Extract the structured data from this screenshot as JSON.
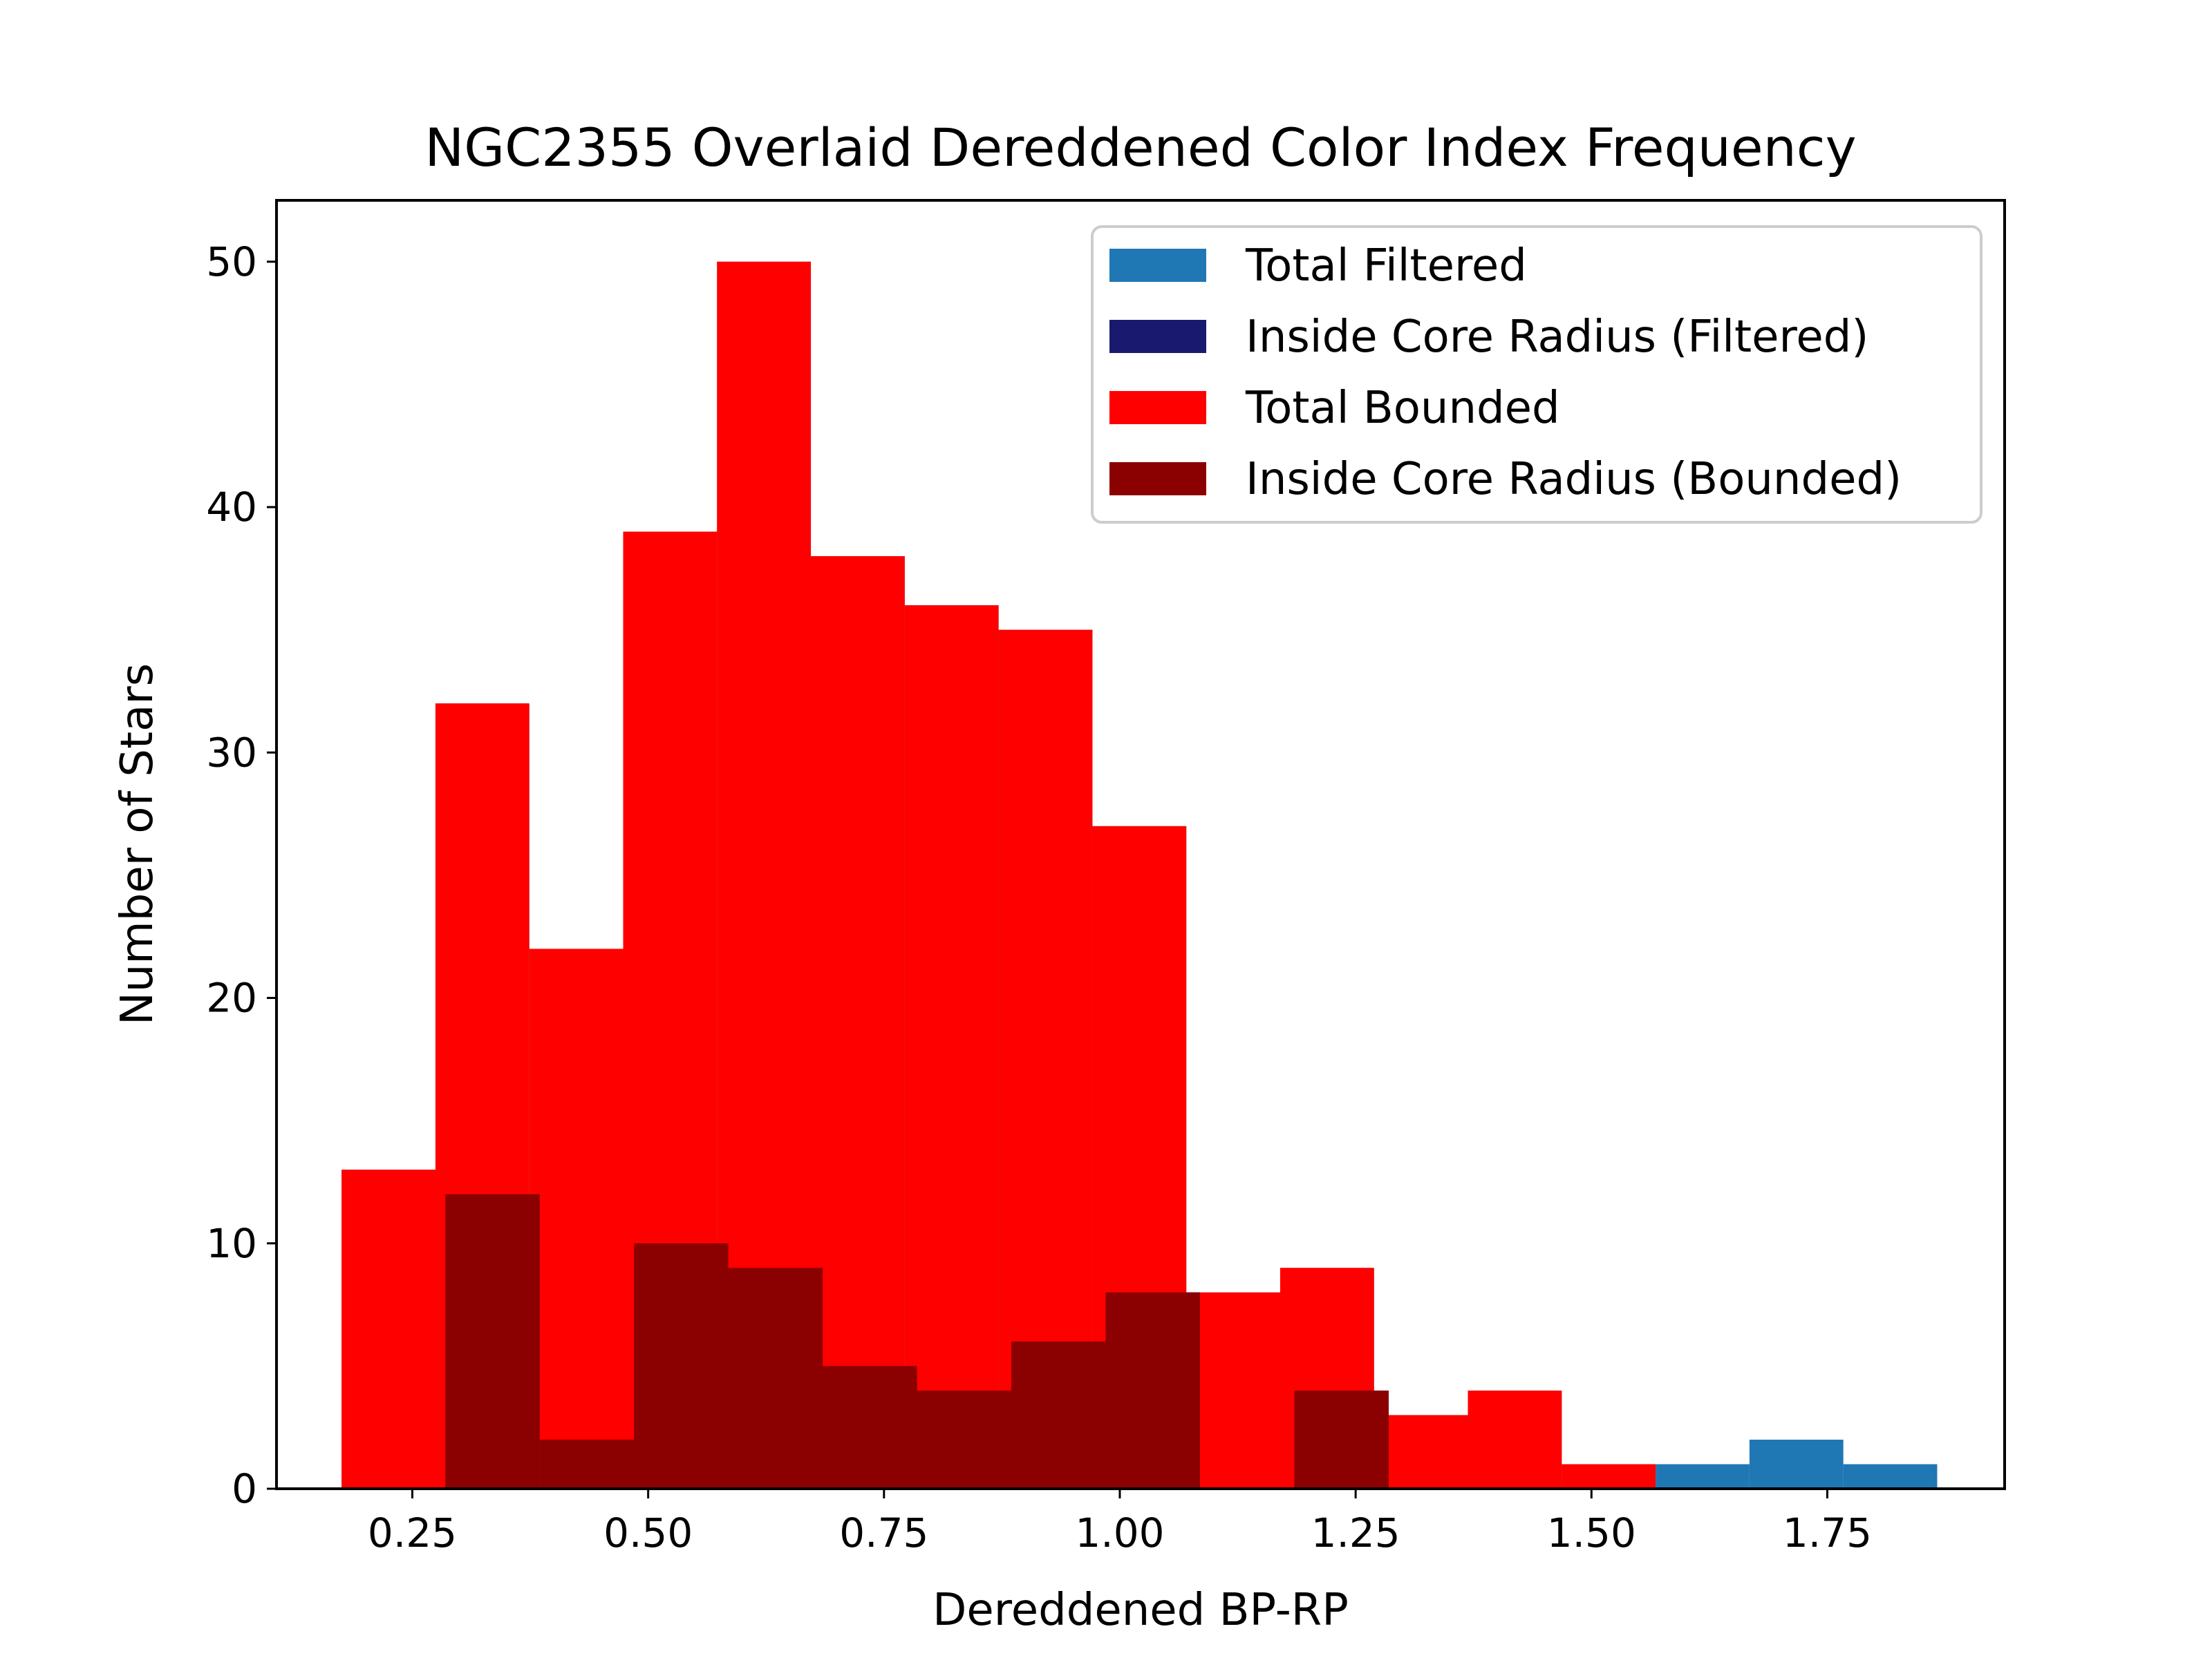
{
  "chart_data": {
    "type": "bar",
    "title": "NGC2355 Overlaid Dereddened Color Index Frequency",
    "xlabel": "Dereddened BP-RP",
    "ylabel": "Number of Stars",
    "xlim": [
      0.106,
      1.938
    ],
    "ylim": [
      0,
      52.5
    ],
    "xticks": [
      0.25,
      0.5,
      0.75,
      1.0,
      1.25,
      1.5,
      1.75
    ],
    "xtick_labels": [
      "0.25",
      "0.50",
      "0.75",
      "1.00",
      "1.25",
      "1.50",
      "1.75"
    ],
    "yticks": [
      0,
      10,
      20,
      30,
      40,
      50
    ],
    "ytick_labels": [
      "0",
      "10",
      "20",
      "30",
      "40",
      "50"
    ],
    "grid": false,
    "legend_position": "top-right",
    "series": [
      {
        "name": "Total Filtered",
        "color": "#1f77b4",
        "bin_edges": [
          0.175,
          0.2745,
          0.374,
          0.4735,
          0.573,
          0.6725,
          0.772,
          0.8715,
          0.971,
          1.0705,
          1.17,
          1.2695,
          1.369,
          1.4685,
          1.568,
          1.6675,
          1.767,
          1.8665
        ],
        "counts": [
          13,
          32,
          22,
          39,
          50,
          38,
          36,
          35,
          27,
          8,
          9,
          3,
          4,
          1,
          1,
          2,
          1
        ]
      },
      {
        "name": "Inside Core Radius (Filtered)",
        "color": "#191970",
        "bin_edges": [
          0.285,
          0.385,
          0.485,
          0.585,
          0.685,
          0.785,
          0.885,
          0.985,
          1.085,
          1.185,
          1.285
        ],
        "counts": [
          12,
          2,
          10,
          9,
          5,
          4,
          6,
          8,
          0,
          4
        ]
      },
      {
        "name": "Total Bounded",
        "color": "#ff0000",
        "bin_edges": [
          0.175,
          0.2745,
          0.374,
          0.4735,
          0.573,
          0.6725,
          0.772,
          0.8715,
          0.971,
          1.0705,
          1.17,
          1.2695,
          1.369,
          1.4685,
          1.568
        ],
        "counts": [
          13,
          32,
          22,
          39,
          50,
          38,
          36,
          35,
          27,
          8,
          9,
          3,
          4,
          1
        ]
      },
      {
        "name": "Inside Core Radius (Bounded)",
        "color": "#8b0000",
        "bin_edges": [
          0.285,
          0.385,
          0.485,
          0.585,
          0.685,
          0.785,
          0.885,
          0.985,
          1.085,
          1.185,
          1.285
        ],
        "counts": [
          12,
          2,
          10,
          9,
          5,
          4,
          6,
          8,
          0,
          4
        ]
      }
    ]
  }
}
